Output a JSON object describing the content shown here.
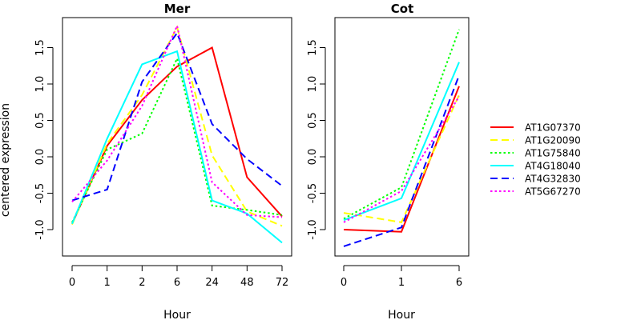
{
  "ylabel": "centered expression",
  "legend": {
    "placement": "right",
    "entries": [
      {
        "name": "AT1G07370",
        "color": "#ff0000",
        "dash": "solid"
      },
      {
        "name": "AT1G20090",
        "color": "#ffff00",
        "dash": "dashed"
      },
      {
        "name": "AT1G75840",
        "color": "#00ff00",
        "dash": "dotted"
      },
      {
        "name": "AT4G18040",
        "color": "#00ffff",
        "dash": "solid"
      },
      {
        "name": "AT4G32830",
        "color": "#0000ff",
        "dash": "dashed"
      },
      {
        "name": "AT5G67270",
        "color": "#ff00ff",
        "dash": "dotted"
      }
    ]
  },
  "chart_data": [
    {
      "type": "line",
      "title": "Mer",
      "xlabel": "Hour",
      "ylabel": "centered expression",
      "categories": [
        "0",
        "1",
        "2",
        "6",
        "24",
        "48",
        "72"
      ],
      "ylim": [
        -1.25,
        1.88
      ],
      "yticks": [
        "-1.0",
        "-0.5",
        "0.0",
        "0.5",
        "1.0",
        "1.5"
      ],
      "grid": false,
      "series": [
        {
          "name": "AT1G07370",
          "values": [
            -0.92,
            0.15,
            0.78,
            1.24,
            1.5,
            -0.28,
            -0.82
          ]
        },
        {
          "name": "AT1G20090",
          "values": [
            -0.93,
            0.18,
            0.85,
            1.78,
            0.02,
            -0.75,
            -0.95
          ]
        },
        {
          "name": "AT1G75840",
          "values": [
            -0.9,
            0.1,
            0.32,
            1.35,
            -0.67,
            -0.73,
            -0.8
          ]
        },
        {
          "name": "AT4G18040",
          "values": [
            -0.92,
            0.25,
            1.27,
            1.45,
            -0.6,
            -0.78,
            -1.18
          ]
        },
        {
          "name": "AT4G32830",
          "values": [
            -0.6,
            -0.45,
            1.03,
            1.7,
            0.45,
            -0.03,
            -0.4
          ]
        },
        {
          "name": "AT5G67270",
          "values": [
            -0.62,
            -0.05,
            0.7,
            1.8,
            -0.35,
            -0.8,
            -0.83
          ]
        }
      ]
    },
    {
      "type": "line",
      "title": "Cot",
      "xlabel": "Hour",
      "categories": [
        "0",
        "1",
        "6"
      ],
      "ylim": [
        -1.25,
        1.88
      ],
      "yticks": [
        "-1.0",
        "-0.5",
        "0.0",
        "0.5",
        "1.0",
        "1.5"
      ],
      "grid": false,
      "series": [
        {
          "name": "AT1G07370",
          "values": [
            -1.0,
            -1.03,
            0.97
          ]
        },
        {
          "name": "AT1G20090",
          "values": [
            -0.77,
            -0.9,
            0.85
          ]
        },
        {
          "name": "AT1G75840",
          "values": [
            -0.85,
            -0.42,
            1.75
          ]
        },
        {
          "name": "AT4G18040",
          "values": [
            -0.87,
            -0.57,
            1.3
          ]
        },
        {
          "name": "AT4G32830",
          "values": [
            -1.23,
            -0.97,
            1.12
          ]
        },
        {
          "name": "AT5G67270",
          "values": [
            -0.9,
            -0.47,
            0.83
          ]
        }
      ]
    }
  ]
}
